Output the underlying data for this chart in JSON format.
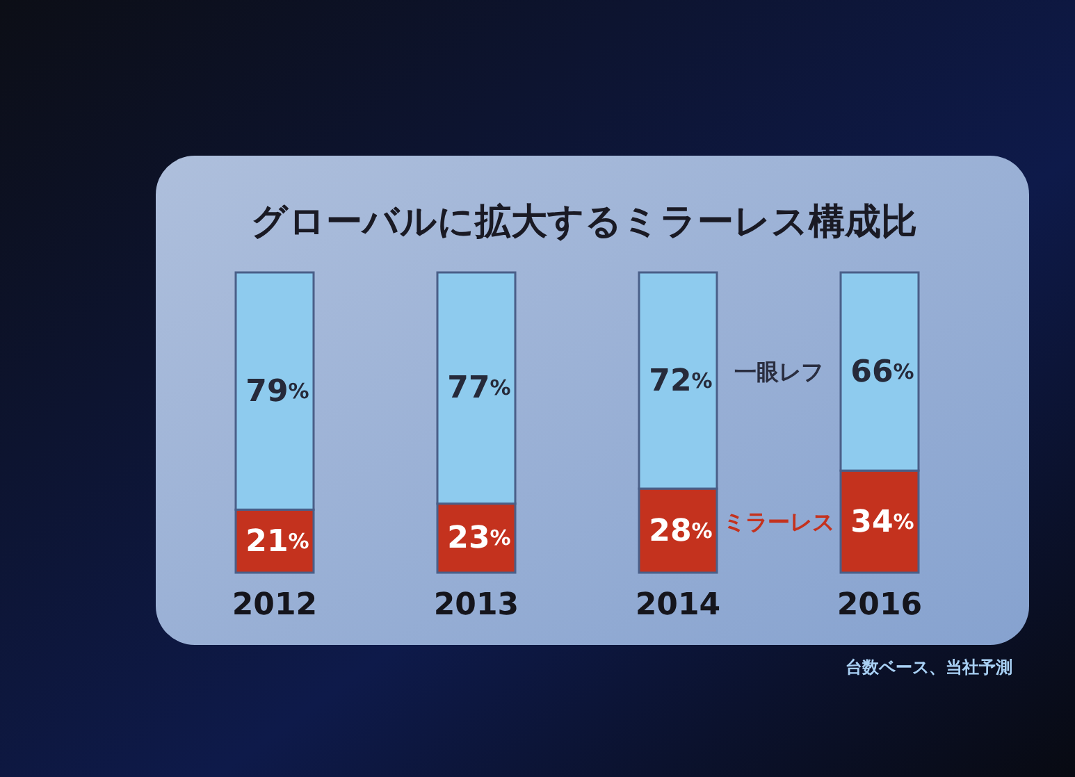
{
  "chart_data": {
    "type": "bar",
    "stacked": true,
    "title": "グローバルに拡大するミラーレス構成比",
    "categories": [
      "2012",
      "2013",
      "2014",
      "2016"
    ],
    "series": [
      {
        "name": "ミラーレス",
        "color": "#c4321e",
        "values": [
          21,
          23,
          28,
          34
        ],
        "value_labels": [
          "21%",
          "23%",
          "28%",
          "34%"
        ]
      },
      {
        "name": "一眼レフ",
        "color": "#8ecbee",
        "values": [
          79,
          77,
          72,
          66
        ],
        "value_labels": [
          "79%",
          "77%",
          "72%",
          "66%"
        ]
      }
    ],
    "annotations": [
      "台数ベース、当社予測"
    ]
  }
}
